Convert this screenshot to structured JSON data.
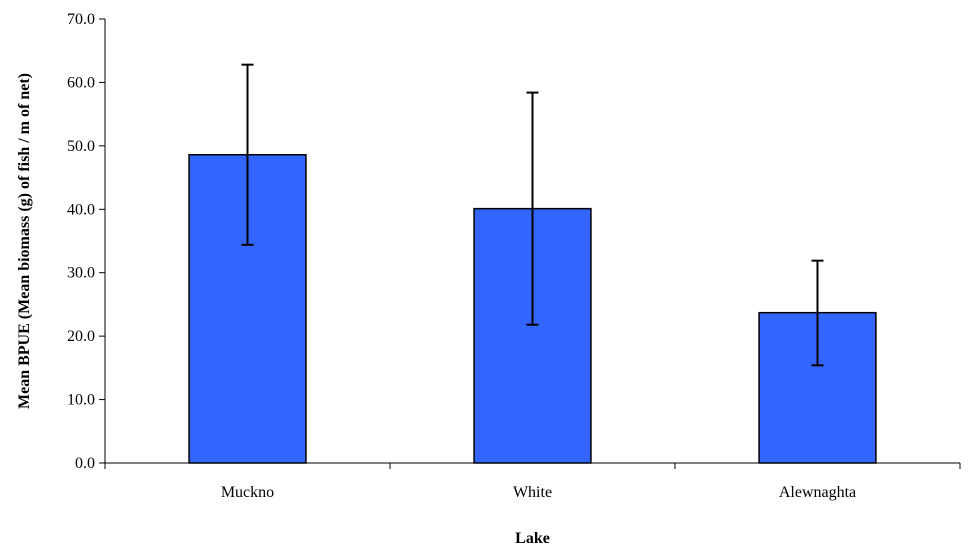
{
  "chart_data": {
    "type": "bar",
    "categories": [
      "Muckno",
      "White",
      "Alewnaghta"
    ],
    "values": [
      48.6,
      40.1,
      23.7
    ],
    "error_high": [
      62.8,
      58.4,
      31.9
    ],
    "error_low": [
      34.4,
      21.8,
      15.4
    ],
    "xlabel": "Lake",
    "ylabel": "Mean BPUE (Mean biomass (g) of  fish / m of net)",
    "ylim": [
      0,
      70
    ],
    "yticks": [
      0,
      10,
      20,
      30,
      40,
      50,
      60,
      70
    ],
    "ytick_labels": [
      "0.0",
      "10.0",
      "20.0",
      "30.0",
      "40.0",
      "50.0",
      "60.0",
      "70.0"
    ],
    "grid": false,
    "legend": "none",
    "colors": {
      "bar_fill": "#3366FF",
      "bar_edge": "#000000"
    }
  }
}
